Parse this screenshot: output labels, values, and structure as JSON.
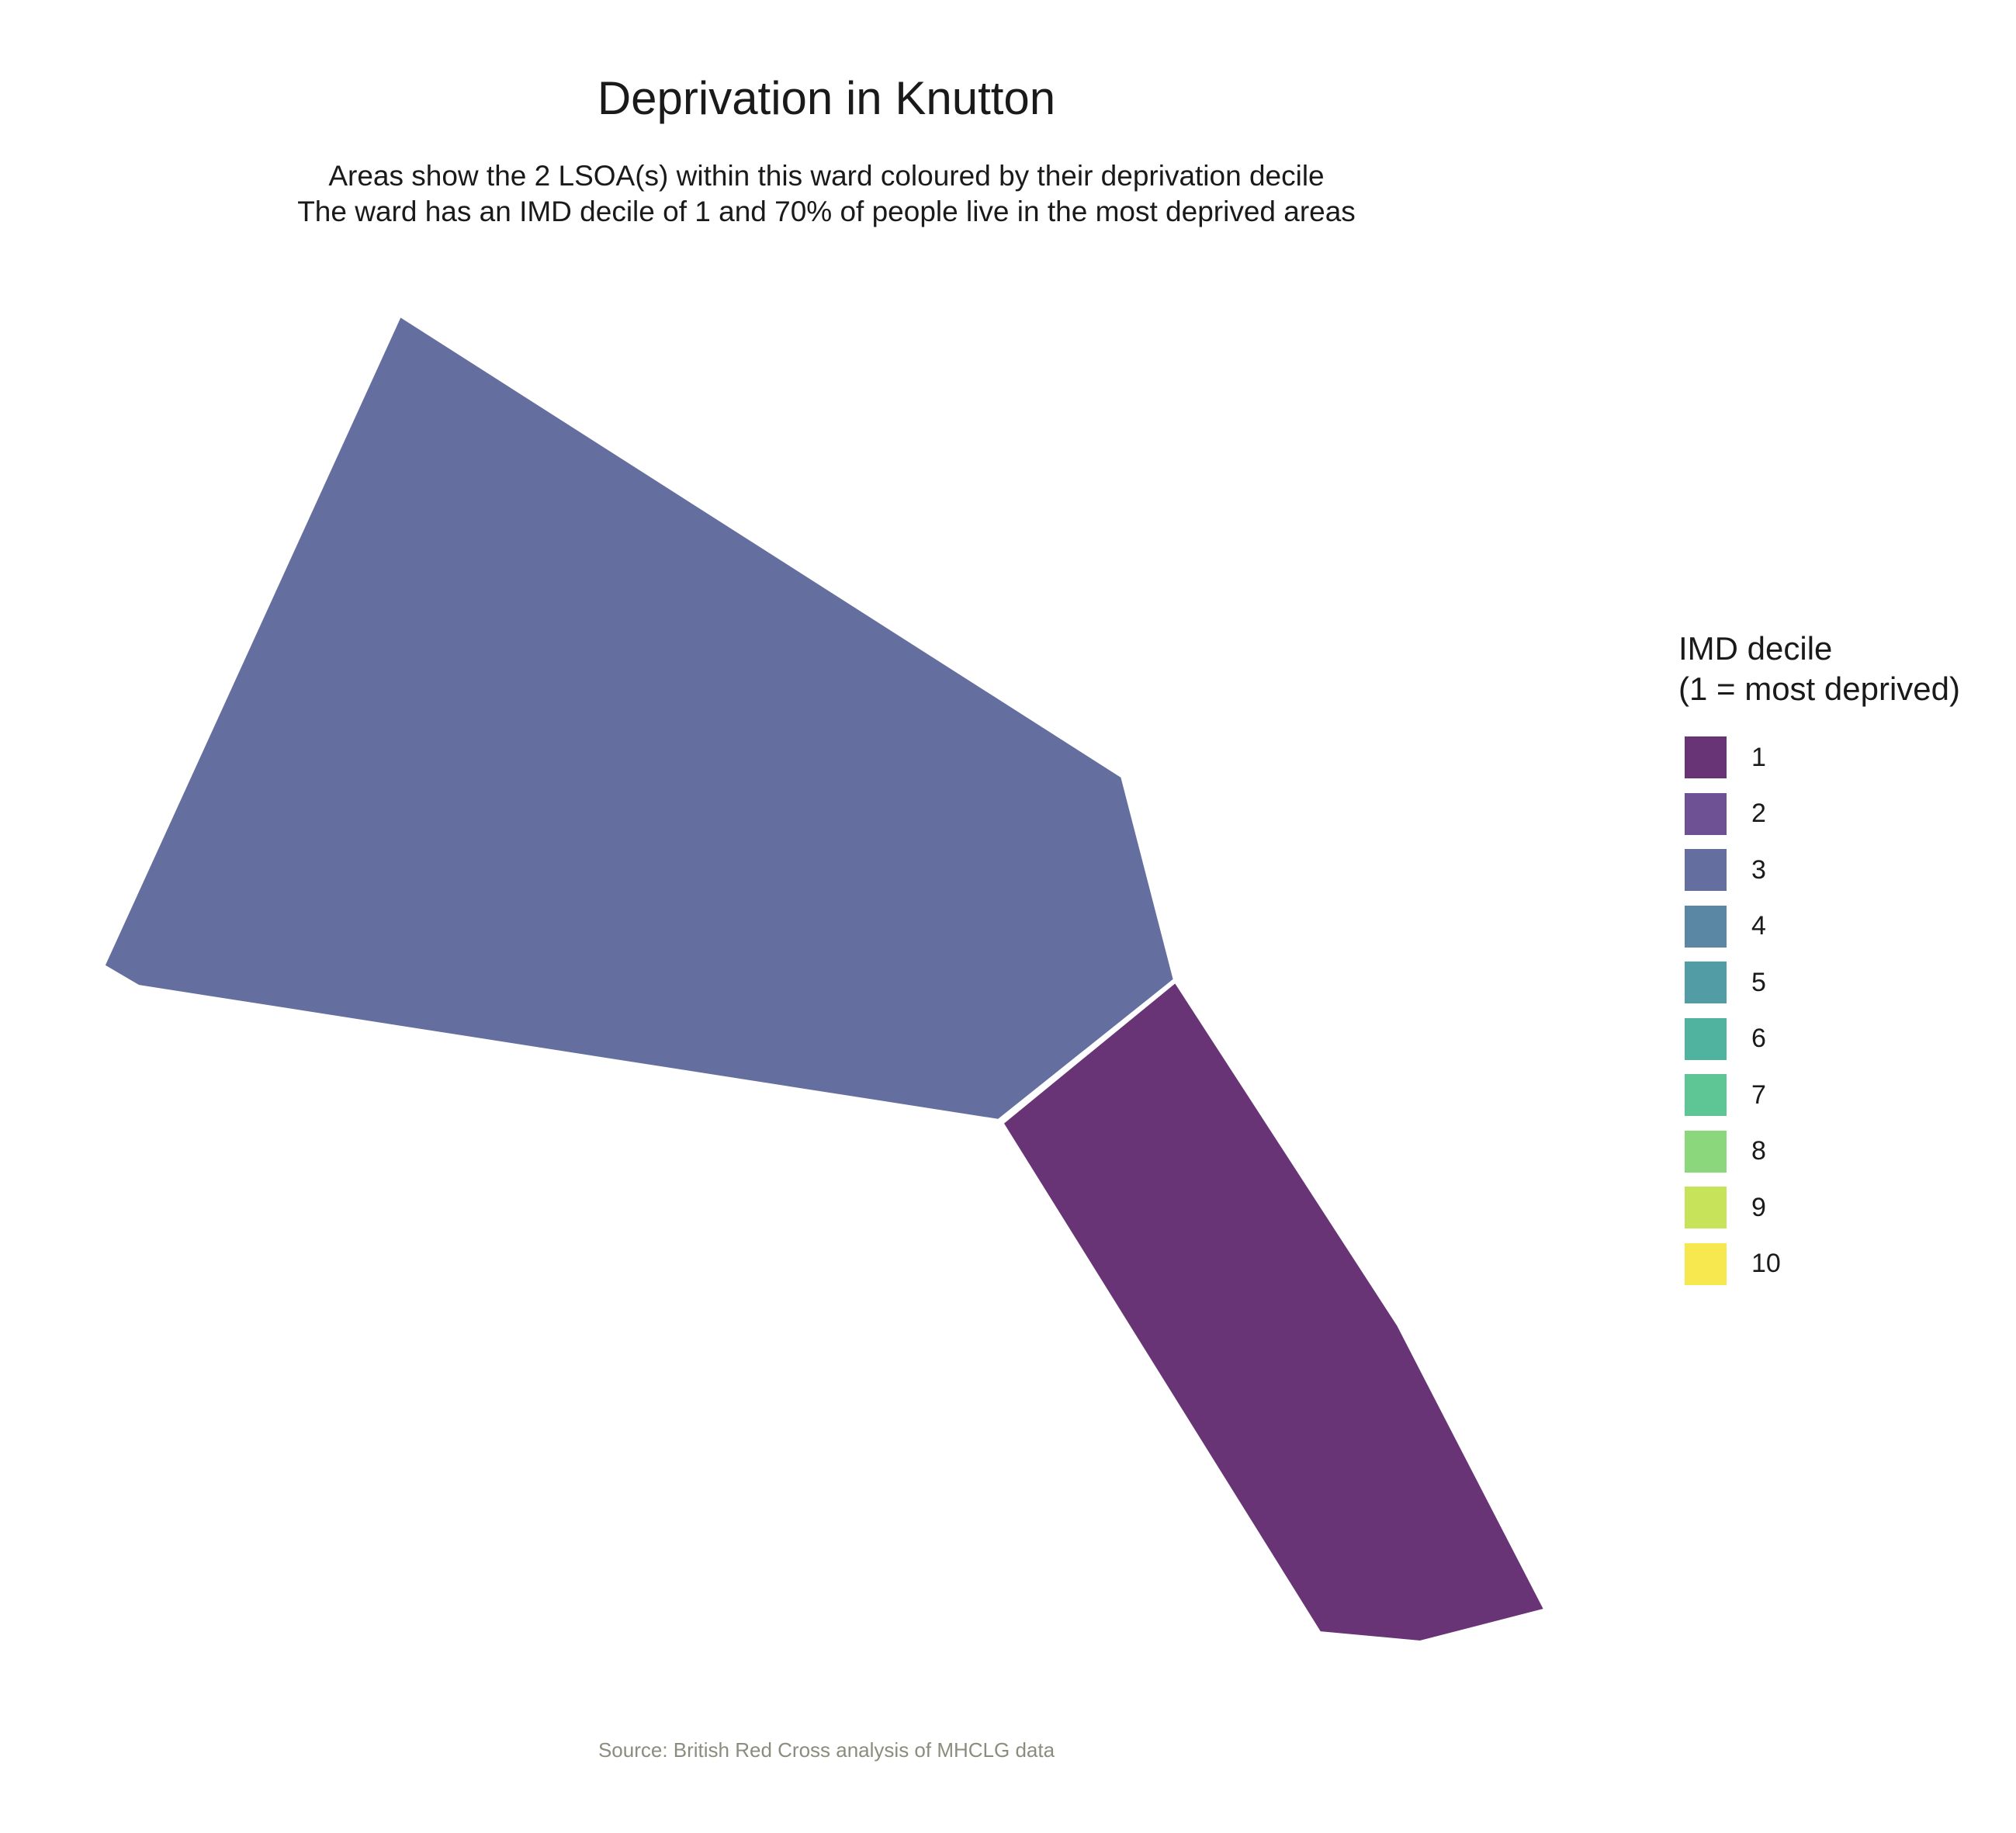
{
  "title": "Deprivation in Knutton",
  "subtitle": {
    "line1": "Areas show the 2 LSOA(s) within this ward coloured by their deprivation decile",
    "line2": "The ward has an IMD decile of 1 and 70% of people live in the most deprived areas"
  },
  "caption": "Source: British Red Cross analysis of MHCLG data",
  "legend": {
    "title_line1": "IMD decile",
    "title_line2": "(1 = most deprived)",
    "items": [
      {
        "label": "1",
        "color": "#683476"
      },
      {
        "label": "2",
        "color": "#6d5194"
      },
      {
        "label": "3",
        "color": "#646e9f"
      },
      {
        "label": "4",
        "color": "#5a87a3"
      },
      {
        "label": "5",
        "color": "#529ca5"
      },
      {
        "label": "6",
        "color": "#4fb39f"
      },
      {
        "label": "7",
        "color": "#5ec695"
      },
      {
        "label": "8",
        "color": "#8ad87b"
      },
      {
        "label": "9",
        "color": "#c6e35a"
      },
      {
        "label": "10",
        "color": "#f7e84f"
      }
    ]
  },
  "map_data": {
    "areas": [
      {
        "decile": 3,
        "color": "#646e9f"
      },
      {
        "decile": 1,
        "color": "#683476"
      }
    ]
  }
}
